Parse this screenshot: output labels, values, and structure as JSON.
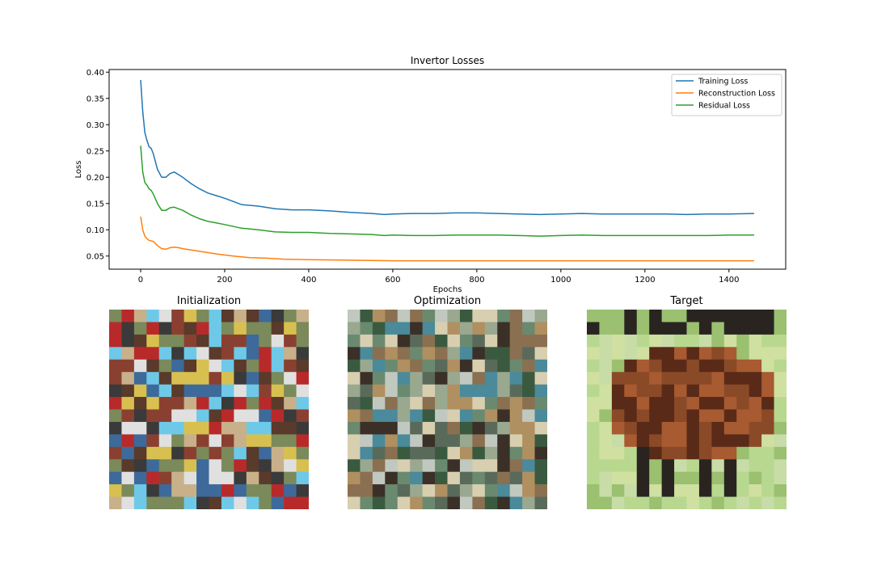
{
  "chart_data": [
    {
      "type": "line",
      "title": "Invertor Losses",
      "xlabel": "Epochs",
      "ylabel": "Loss",
      "xlim": [
        -75,
        1535
      ],
      "ylim": [
        0.025,
        0.405
      ],
      "xticks": [
        0,
        200,
        400,
        600,
        800,
        1000,
        1200,
        1400
      ],
      "yticks": [
        0.05,
        0.1,
        0.15,
        0.2,
        0.25,
        0.3,
        0.35,
        0.4
      ],
      "ytick_labels": [
        "0.05",
        "0.10",
        "0.15",
        "0.20",
        "0.25",
        "0.30",
        "0.35",
        "0.40"
      ],
      "legend_position": "upper-right",
      "grid": false,
      "series": [
        {
          "name": "Training Loss",
          "color": "#1f77b4",
          "x": [
            0,
            5,
            10,
            15,
            20,
            25,
            30,
            40,
            50,
            60,
            70,
            80,
            90,
            100,
            120,
            140,
            160,
            180,
            200,
            240,
            280,
            320,
            360,
            400,
            450,
            500,
            550,
            580,
            600,
            650,
            700,
            750,
            800,
            850,
            900,
            950,
            1000,
            1050,
            1100,
            1150,
            1200,
            1250,
            1300,
            1350,
            1400,
            1460
          ],
          "y": [
            0.385,
            0.325,
            0.285,
            0.27,
            0.258,
            0.255,
            0.245,
            0.215,
            0.2,
            0.2,
            0.207,
            0.21,
            0.205,
            0.2,
            0.188,
            0.178,
            0.17,
            0.165,
            0.16,
            0.148,
            0.145,
            0.14,
            0.138,
            0.138,
            0.136,
            0.133,
            0.131,
            0.129,
            0.13,
            0.131,
            0.131,
            0.132,
            0.132,
            0.131,
            0.13,
            0.129,
            0.13,
            0.131,
            0.13,
            0.13,
            0.13,
            0.13,
            0.129,
            0.13,
            0.13,
            0.131
          ]
        },
        {
          "name": "Reconstruction Loss",
          "color": "#ff7f0e",
          "x": [
            0,
            5,
            10,
            15,
            20,
            30,
            40,
            50,
            60,
            70,
            80,
            90,
            100,
            140,
            180,
            220,
            260,
            300,
            340,
            400,
            500,
            600,
            700,
            800,
            900,
            1000,
            1100,
            1200,
            1300,
            1400,
            1460
          ],
          "y": [
            0.125,
            0.1,
            0.088,
            0.083,
            0.08,
            0.078,
            0.07,
            0.064,
            0.063,
            0.066,
            0.067,
            0.066,
            0.064,
            0.059,
            0.054,
            0.05,
            0.047,
            0.046,
            0.044,
            0.043,
            0.042,
            0.041,
            0.041,
            0.041,
            0.041,
            0.041,
            0.041,
            0.041,
            0.041,
            0.041,
            0.041
          ]
        },
        {
          "name": "Residual Loss",
          "color": "#2ca02c",
          "x": [
            0,
            5,
            10,
            15,
            20,
            25,
            30,
            40,
            50,
            60,
            70,
            80,
            90,
            100,
            120,
            140,
            160,
            180,
            200,
            240,
            280,
            320,
            360,
            400,
            450,
            500,
            550,
            580,
            600,
            650,
            700,
            750,
            800,
            850,
            900,
            950,
            1000,
            1050,
            1100,
            1150,
            1200,
            1250,
            1300,
            1350,
            1400,
            1460
          ],
          "y": [
            0.26,
            0.21,
            0.19,
            0.185,
            0.178,
            0.175,
            0.168,
            0.15,
            0.137,
            0.137,
            0.142,
            0.143,
            0.14,
            0.137,
            0.128,
            0.121,
            0.116,
            0.113,
            0.11,
            0.103,
            0.1,
            0.096,
            0.095,
            0.095,
            0.093,
            0.092,
            0.091,
            0.089,
            0.09,
            0.089,
            0.089,
            0.09,
            0.09,
            0.09,
            0.089,
            0.088,
            0.089,
            0.09,
            0.089,
            0.089,
            0.089,
            0.089,
            0.089,
            0.089,
            0.09,
            0.09
          ]
        }
      ]
    }
  ],
  "images": [
    {
      "title": "Initialization",
      "palette": [
        "#6ec9e8",
        "#3a3a3a",
        "#c8b08a",
        "#8a4030",
        "#3d6a9a",
        "#b82a2a",
        "#d8c050",
        "#7a8a5a",
        "#e0e0e0",
        "#5a3a2a"
      ]
    },
    {
      "title": "Optimization",
      "palette": [
        "#3a5a40",
        "#b09060",
        "#8a7050",
        "#d8cfb0",
        "#6a8a70",
        "#4a8a9a",
        "#c0c8c0",
        "#3a3028",
        "#9aa890",
        "#5a6a5a"
      ]
    },
    {
      "title": "Target",
      "palette": [
        "#b8d890",
        "#5a2a18",
        "#8a4a28",
        "#a85a30",
        "#2a2420",
        "#d0e0a0",
        "#6a3a20",
        "#9ac070",
        "#c8dca8",
        "#4a3020"
      ]
    }
  ]
}
